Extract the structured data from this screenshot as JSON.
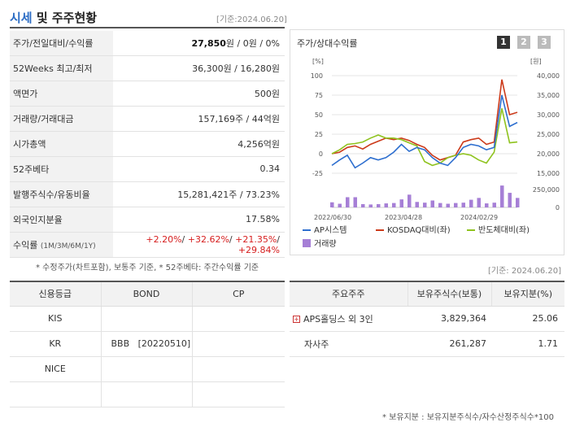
{
  "header": {
    "title_part1": "시세",
    "title_part2": " 및 주주현황",
    "date": "[기준:2024.06.20]"
  },
  "info_rows": [
    {
      "label": "주가/전일대비/수익률",
      "v1": "27,850",
      "v2": "원 / 0원 / 0%"
    },
    {
      "label": "52Weeks 최고/최저",
      "value": "36,300원 / 16,280원"
    },
    {
      "label": "액면가",
      "value": "500원"
    },
    {
      "label": "거래량/거래대금",
      "value": "157,169주 / 44억원"
    },
    {
      "label": "시가총액",
      "value": "4,256억원"
    },
    {
      "label": "52주베타",
      "value": "0.34"
    },
    {
      "label": "발행주식수/유동비율",
      "value": "15,281,421주 / 73.23%"
    },
    {
      "label": "외국인지분율",
      "value": "17.58%"
    },
    {
      "label": "수익률",
      "label_sub": "(1M/3M/6M/1Y)",
      "r1": "+2.20%",
      "r2": "+32.62%",
      "r3": "+21.35%",
      "r4": "+29.84%"
    }
  ],
  "notes": {
    "note1": "* 수정주가(차트포함), 보통주 기준, * 52주베타: 주간수익률 기준",
    "date2": "[기준: 2024.06.20]",
    "note2": "* 보유지분 : 보유지분주식수/자수산정주식수*100"
  },
  "chart": {
    "title": "주가/상대수익률",
    "pages": [
      "1",
      "2",
      "3"
    ],
    "left_unit": "[%]",
    "right_unit": "[원]",
    "legend": [
      "AP시스템",
      "KOSDAQ대비(좌)",
      "반도체대비(좌)",
      "거래량"
    ],
    "colors": {
      "stock": "#2e6fcf",
      "kosdaq": "#cc3a1a",
      "semi": "#8fc31f",
      "volume": "#a67fd6"
    }
  },
  "chart_data": {
    "type": "line",
    "x_labels": [
      "2022/06/30",
      "2023/04/28",
      "2024/02/29"
    ],
    "left_axis": {
      "ticks": [
        100,
        75,
        50,
        25,
        0,
        -25
      ]
    },
    "right_axis": {
      "ticks": [
        "40,000",
        "35,000",
        "30,000",
        "25,000",
        "20,000",
        "15,000"
      ]
    },
    "volume_axis": {
      "ticks": [
        "250,000",
        "0"
      ],
      "max": 250000
    },
    "series": [
      {
        "name": "AP시스템",
        "values": [
          -15,
          -8,
          -2,
          -18,
          -12,
          -5,
          -8,
          -5,
          2,
          12,
          3,
          8,
          5,
          -5,
          -12,
          -15,
          -5,
          8,
          12,
          10,
          5,
          8,
          75,
          35,
          40
        ]
      },
      {
        "name": "KOSDAQ대비(좌)",
        "values": [
          0,
          2,
          8,
          10,
          6,
          12,
          16,
          20,
          18,
          20,
          17,
          12,
          8,
          -2,
          -8,
          -5,
          -2,
          15,
          18,
          20,
          12,
          15,
          95,
          50,
          53
        ]
      },
      {
        "name": "반도체대비(좌)",
        "values": [
          0,
          5,
          12,
          13,
          15,
          20,
          24,
          20,
          20,
          18,
          14,
          10,
          -10,
          -15,
          -12,
          -5,
          -2,
          0,
          -2,
          -8,
          -12,
          2,
          58,
          14,
          15
        ]
      },
      {
        "name": "거래량",
        "values": [
          70000,
          50000,
          140000,
          140000,
          45000,
          40000,
          45000,
          55000,
          60000,
          110000,
          175000,
          75000,
          65000,
          95000,
          60000,
          50000,
          60000,
          65000,
          105000,
          130000,
          55000,
          65000,
          300000,
          200000,
          130000
        ]
      }
    ]
  },
  "credit": {
    "headers": [
      "신용등급",
      "BOND",
      "CP"
    ],
    "rows": [
      {
        "agency": "KIS",
        "bond": "",
        "cp": ""
      },
      {
        "agency": "KR",
        "bond": "BBB   [20220510]",
        "cp": ""
      },
      {
        "agency": "NICE",
        "bond": "",
        "cp": ""
      },
      {
        "agency": "",
        "bond": "",
        "cp": ""
      }
    ]
  },
  "holders": {
    "headers": [
      "주요주주",
      "보유주식수(보통)",
      "보유지분(%)"
    ],
    "rows": [
      {
        "name": "APS홀딩스 외 3인",
        "shares": "3,829,364",
        "pct": "25.06",
        "expand": "+"
      },
      {
        "name": "자사주",
        "shares": "261,287",
        "pct": "1.71"
      }
    ]
  }
}
